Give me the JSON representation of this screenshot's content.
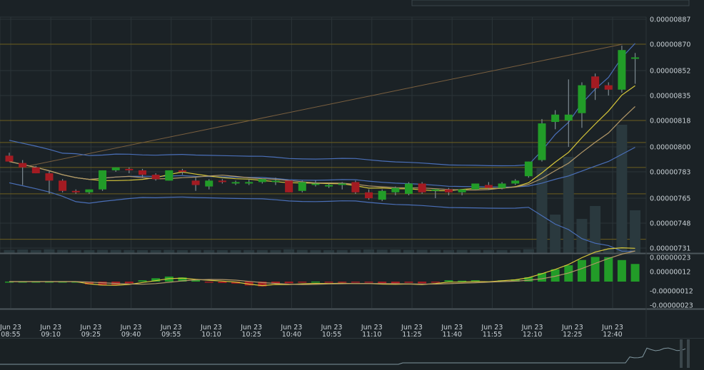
{
  "chart_data": [
    {
      "type": "candlestick",
      "title": "",
      "y_ticks": [
        "0.00000887",
        "0.00000870",
        "0.00000852",
        "0.00000835",
        "0.00000818",
        "0.00000800",
        "0.00000783",
        "0.00000765",
        "0.00000748",
        "0.00000731"
      ],
      "ylim": [
        7.31e-06,
        8.87e-06
      ],
      "x_ticks": [
        {
          "top": "Jun 23",
          "bottom": "08:55"
        },
        {
          "top": "Jun 23",
          "bottom": "09:10"
        },
        {
          "top": "Jun 23",
          "bottom": "09:25"
        },
        {
          "top": "Jun 23",
          "bottom": "09:40"
        },
        {
          "top": "Jun 23",
          "bottom": "09:55"
        },
        {
          "top": "Jun 23",
          "bottom": "10:10"
        },
        {
          "top": "Jun 23",
          "bottom": "10:25"
        },
        {
          "top": "Jun 23",
          "bottom": "10:40"
        },
        {
          "top": "Jun 23",
          "bottom": "10:55"
        },
        {
          "top": "Jun 23",
          "bottom": "11:10"
        },
        {
          "top": "Jun 23",
          "bottom": "11:25"
        },
        {
          "top": "Jun 23",
          "bottom": "11:40"
        },
        {
          "top": "Jun 23",
          "bottom": "11:55"
        },
        {
          "top": "Jun 23",
          "bottom": "12:10"
        },
        {
          "top": "Jun 23",
          "bottom": "12:25"
        },
        {
          "top": "Jun 23",
          "bottom": "12:40"
        }
      ],
      "candles": [
        [
          7.94e-06,
          7.96e-06,
          7.9e-06,
          7.9e-06,
          1
        ],
        [
          7.89e-06,
          7.91e-06,
          7.74e-06,
          7.86e-06,
          3
        ],
        [
          7.86e-06,
          7.87e-06,
          7.82e-06,
          7.82e-06,
          1
        ],
        [
          7.82e-06,
          7.84e-06,
          7.68e-06,
          7.77e-06,
          4
        ],
        [
          7.77e-06,
          7.78e-06,
          7.69e-06,
          7.7e-06,
          2
        ],
        [
          7.7e-06,
          7.71e-06,
          7.68e-06,
          7.69e-06,
          1
        ],
        [
          7.69e-06,
          7.71e-06,
          7.68e-06,
          7.71e-06,
          0.5
        ],
        [
          7.71e-06,
          7.84e-06,
          7.7e-06,
          7.84e-06,
          1.5
        ],
        [
          7.84e-06,
          7.86e-06,
          7.83e-06,
          7.86e-06,
          1.5
        ],
        [
          7.85e-06,
          7.86e-06,
          7.82e-06,
          7.84e-06,
          1
        ],
        [
          7.84e-06,
          7.85e-06,
          7.79e-06,
          7.81e-06,
          0.5
        ],
        [
          7.81e-06,
          7.82e-06,
          7.77e-06,
          7.78e-06,
          0.5
        ],
        [
          7.77e-06,
          7.84e-06,
          7.77e-06,
          7.84e-06,
          1.5
        ],
        [
          7.84e-06,
          7.85e-06,
          7.81e-06,
          7.83e-06,
          0.5
        ],
        [
          7.77e-06,
          7.79e-06,
          7.7e-06,
          7.74e-06,
          1
        ],
        [
          7.73e-06,
          7.78e-06,
          7.71e-06,
          7.77e-06,
          1
        ],
        [
          7.77e-06,
          7.78e-06,
          7.75e-06,
          7.76e-06,
          0.5
        ],
        [
          7.76e-06,
          7.77e-06,
          7.74e-06,
          7.76e-06,
          0.5
        ],
        [
          7.76e-06,
          7.78e-06,
          7.74e-06,
          7.76e-06,
          1
        ],
        [
          7.76e-06,
          7.78e-06,
          7.75e-06,
          7.78e-06,
          1
        ],
        [
          7.77e-06,
          7.79e-06,
          7.74e-06,
          7.77e-06,
          1
        ],
        [
          7.77e-06,
          7.77e-06,
          7.69e-06,
          7.69e-06,
          4
        ],
        [
          7.7e-06,
          7.77e-06,
          7.69e-06,
          7.76e-06,
          1.5
        ],
        [
          7.75e-06,
          7.77e-06,
          7.73e-06,
          7.75e-06,
          1
        ],
        [
          7.73e-06,
          7.75e-06,
          7.72e-06,
          7.74e-06,
          0.5
        ],
        [
          7.74e-06,
          7.76e-06,
          7.71e-06,
          7.75e-06,
          1
        ],
        [
          7.76e-06,
          7.77e-06,
          7.68e-06,
          7.69e-06,
          2
        ],
        [
          7.69e-06,
          7.71e-06,
          7.64e-06,
          7.65e-06,
          3.5
        ],
        [
          7.64e-06,
          7.71e-06,
          7.63e-06,
          7.7e-06,
          2.5
        ],
        [
          7.69e-06,
          7.73e-06,
          7.67e-06,
          7.72e-06,
          3.5
        ],
        [
          7.68e-06,
          7.76e-06,
          7.67e-06,
          7.75e-06,
          1.5
        ],
        [
          7.75e-06,
          7.76e-06,
          7.68e-06,
          7.69e-06,
          2
        ],
        [
          7.7e-06,
          7.71e-06,
          7.65e-06,
          7.71e-06,
          1.5
        ],
        [
          7.71e-06,
          7.72e-06,
          7.67e-06,
          7.69e-06,
          1
        ],
        [
          7.69e-06,
          7.71e-06,
          7.67e-06,
          7.71e-06,
          1.5
        ],
        [
          7.71e-06,
          7.75e-06,
          7.71e-06,
          7.75e-06,
          1.2
        ],
        [
          7.74e-06,
          7.76e-06,
          7.71e-06,
          7.72e-06,
          1
        ],
        [
          7.72e-06,
          7.76e-06,
          7.71e-06,
          7.75e-06,
          0.8
        ],
        [
          7.75e-06,
          7.78e-06,
          7.74e-06,
          7.77e-06,
          1
        ],
        [
          7.8e-06,
          7.9e-06,
          7.79e-06,
          7.9e-06,
          4.5
        ],
        [
          7.91e-06,
          8.19e-06,
          7.9e-06,
          8.16e-06,
          40
        ],
        [
          8.17e-06,
          8.25e-06,
          8.12e-06,
          8.22e-06,
          18
        ],
        [
          8.18e-06,
          8.46e-06,
          8e-06,
          8.22e-06,
          45
        ],
        [
          8.23e-06,
          8.44e-06,
          8.13e-06,
          8.42e-06,
          16
        ],
        [
          8.48e-06,
          8.5e-06,
          8.32e-06,
          8.4e-06,
          22
        ],
        [
          8.42e-06,
          8.44e-06,
          8.35e-06,
          8.39e-06,
          6
        ],
        [
          8.39e-06,
          8.69e-06,
          8.37e-06,
          8.66e-06,
          60
        ],
        [
          8.61e-06,
          8.64e-06,
          8.43e-06,
          8.61e-06,
          20
        ]
      ],
      "sub_panel": {
        "y_ticks": [
          "0.00000023",
          "0.00000012",
          "-0.00000012",
          "-0.00000023"
        ]
      }
    }
  ]
}
